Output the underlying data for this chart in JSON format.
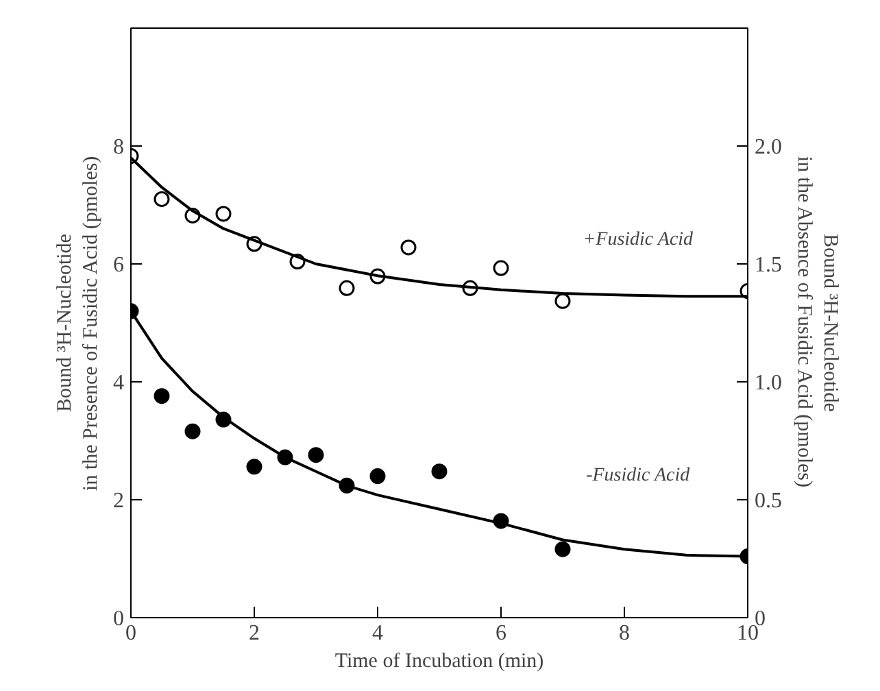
{
  "chart_data": {
    "type": "scatter",
    "xlabel": "Time of Incubation (min)",
    "ylabel": "Bound ³H-Nucleotide\nin the Presence of Fusidic Acid (pmoles)",
    "y2label": "Bound ³H-Nucleotide\nin the Absence of Fusidic Acid (pmoles)",
    "xlim": [
      0,
      10
    ],
    "xticks": [
      0,
      2,
      4,
      6,
      8,
      10
    ],
    "ylim": [
      0,
      10
    ],
    "yticks": [
      0,
      2,
      4,
      6,
      8
    ],
    "y2lim": [
      0,
      2.5
    ],
    "y2ticks": [
      0,
      {
        "value": 0.5,
        "label": "0.5"
      },
      {
        "value": 1.0,
        "label": "1.0"
      },
      {
        "value": 1.5,
        "label": "1.5"
      },
      {
        "value": 2.0,
        "label": "2.0"
      }
    ],
    "grid": false,
    "series": [
      {
        "marker": "circle",
        "color": "#ffffff",
        "x": [
          0,
          0.5,
          1,
          1.5,
          2,
          2.7,
          3.5,
          4,
          4.5,
          5.5,
          6,
          7,
          10
        ],
        "values": [
          7.83,
          7.1,
          6.82,
          6.85,
          6.34,
          6.04,
          5.59,
          5.79,
          6.28,
          5.59,
          5.93,
          5.37,
          5.54
        ]
      },
      {
        "type": "line",
        "marker": "none",
        "color": "#000000",
        "x": [
          0,
          0.5,
          1,
          1.5,
          2,
          3,
          4,
          5,
          6,
          7,
          8,
          9,
          10
        ],
        "values": [
          7.8,
          7.3,
          6.9,
          6.6,
          6.4,
          6.0,
          5.8,
          5.65,
          5.56,
          5.5,
          5.47,
          5.45,
          5.45
        ]
      },
      {
        "marker": "circle",
        "axis": "y2",
        "color": "#000000",
        "x": [
          0,
          0.5,
          1,
          1.5,
          2,
          2.5,
          3,
          3.5,
          4,
          5,
          6,
          7,
          10
        ],
        "values": [
          1.3,
          0.94,
          0.79,
          0.84,
          0.64,
          0.68,
          0.69,
          0.56,
          0.6,
          0.62,
          0.41,
          0.29,
          0.26
        ]
      },
      {
        "type": "line",
        "marker": "none",
        "axis": "y2",
        "color": "#000000",
        "x": [
          0,
          0.5,
          1,
          1.5,
          2,
          2.5,
          3,
          3.5,
          4,
          5,
          6,
          7,
          8,
          9,
          10
        ],
        "values": [
          1.3,
          1.1,
          0.96,
          0.85,
          0.76,
          0.68,
          0.62,
          0.56,
          0.52,
          0.46,
          0.4,
          0.33,
          0.29,
          0.265,
          0.26
        ]
      }
    ],
    "annotations": [
      "+Fusidic Acid",
      "-Fusidic Acid"
    ]
  }
}
